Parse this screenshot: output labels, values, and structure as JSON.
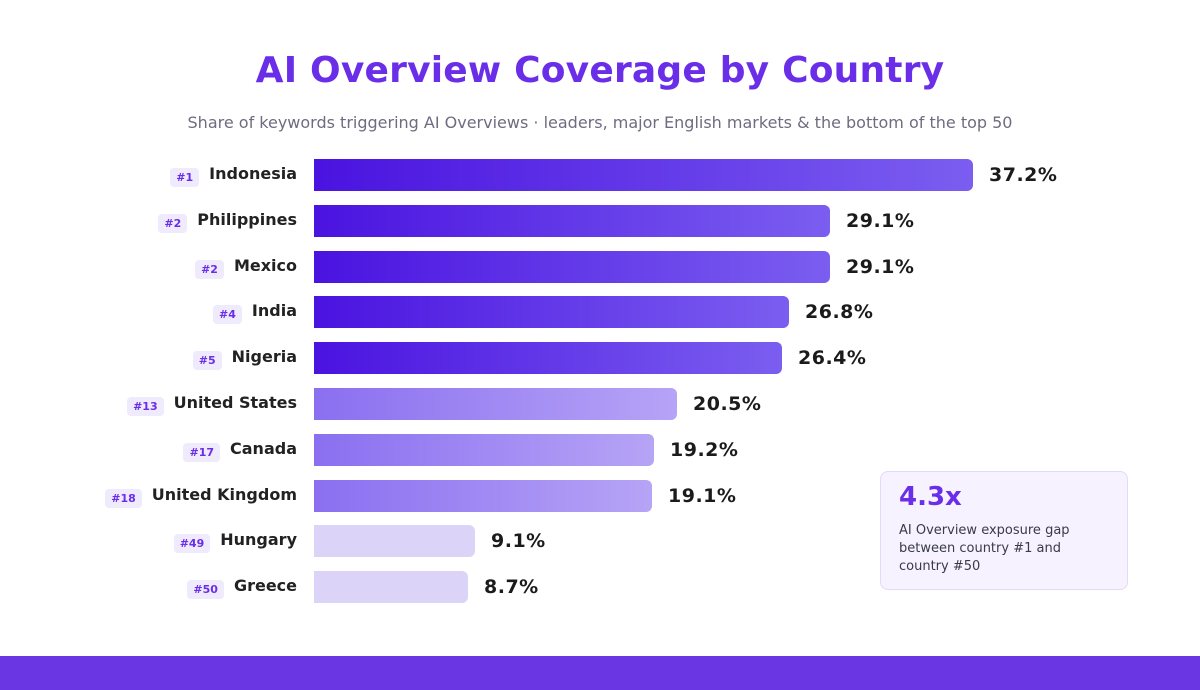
{
  "chart_data": {
    "type": "bar",
    "orientation": "horizontal",
    "title": "AI Overview Coverage by Country",
    "subtitle": "Share of keywords triggering AI Overviews · leaders, major English markets & the bottom of the top 50",
    "categories": [
      "Indonesia",
      "Philippines",
      "Mexico",
      "India",
      "Nigeria",
      "United States",
      "Canada",
      "United Kingdom",
      "Hungary",
      "Greece"
    ],
    "ranks": [
      "#1",
      "#2",
      "#2",
      "#4",
      "#5",
      "#13",
      "#17",
      "#18",
      "#49",
      "#50"
    ],
    "values": [
      37.2,
      29.1,
      29.1,
      26.8,
      26.4,
      20.5,
      19.2,
      19.1,
      9.1,
      8.7
    ],
    "value_labels": [
      "37.2%",
      "29.1%",
      "29.1%",
      "26.8%",
      "26.4%",
      "20.5%",
      "19.2%",
      "19.1%",
      "9.1%",
      "8.7%"
    ],
    "groups": [
      "leaders",
      "leaders",
      "leaders",
      "leaders",
      "leaders",
      "english",
      "english",
      "english",
      "bottom",
      "bottom"
    ],
    "xlim": [
      0,
      37.2
    ],
    "grid": false,
    "legend": "none"
  },
  "callout": {
    "value": "4.3x",
    "text": "AI Overview exposure gap between country #1 and country #50"
  },
  "colors": {
    "accent": "#6a2ee8",
    "leaders_start": "#4a13e0",
    "leaders_end": "#7b5ef0",
    "english_start": "#8a6ff0",
    "english_end": "#b6a4f6",
    "bottom": "#dcd3f8",
    "footer": "#6a35e3"
  }
}
